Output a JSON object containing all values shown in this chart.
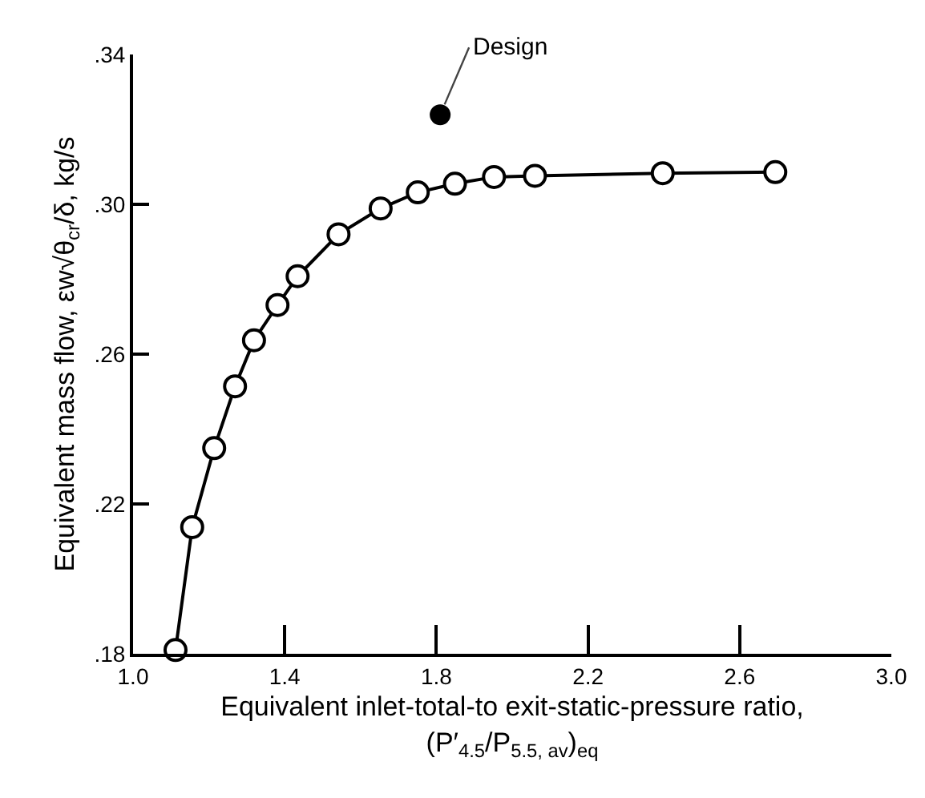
{
  "chart_data": {
    "type": "line",
    "xlabel": "Equivalent inlet-total-to exit-static-pressure ratio,\n(P′$_{4.5}$/P$_{5.5, av}$)$_{eq}$",
    "ylabel": "Equivalent mass flow, εw√θ$_{cr}$/δ, kg/s",
    "xlim": [
      1.0,
      3.0
    ],
    "xticks": [
      {
        "value": 1.0,
        "label": "1.0"
      },
      1.4,
      1.8,
      2.2,
      2.6,
      {
        "value": 3.0,
        "label": "3.0"
      }
    ],
    "ylim": [
      0.18,
      0.34
    ],
    "yticks": [
      {
        "value": 0.18,
        "label": ".18"
      },
      {
        "value": 0.22,
        "label": ".22"
      },
      {
        "value": 0.26,
        "label": ".26"
      },
      {
        "value": 0.3,
        "label": ".30"
      },
      {
        "value": 0.34,
        "label": ".34"
      }
    ],
    "line_style": "solid",
    "series": [
      {
        "marker": "circle",
        "color": "#000000",
        "x": [
          1.112,
          1.156,
          1.214,
          1.269,
          1.319,
          1.381,
          1.434,
          1.542,
          1.653,
          1.751,
          1.849,
          1.952,
          2.06,
          2.397,
          2.694
        ],
        "values": [
          0.181,
          0.2138,
          0.2349,
          0.2514,
          0.2637,
          0.2731,
          0.2808,
          0.292,
          0.2989,
          0.3032,
          0.3055,
          0.3073,
          0.3076,
          0.3083,
          0.3086
        ]
      },
      {
        "type": "scatter",
        "marker": "circle",
        "color": "#000000",
        "x": [
          1.81
        ],
        "values": [
          0.3239
        ]
      }
    ],
    "annotations": [
      {
        "text": "Design",
        "x": 1.81,
        "y": 0.3239
      }
    ]
  }
}
